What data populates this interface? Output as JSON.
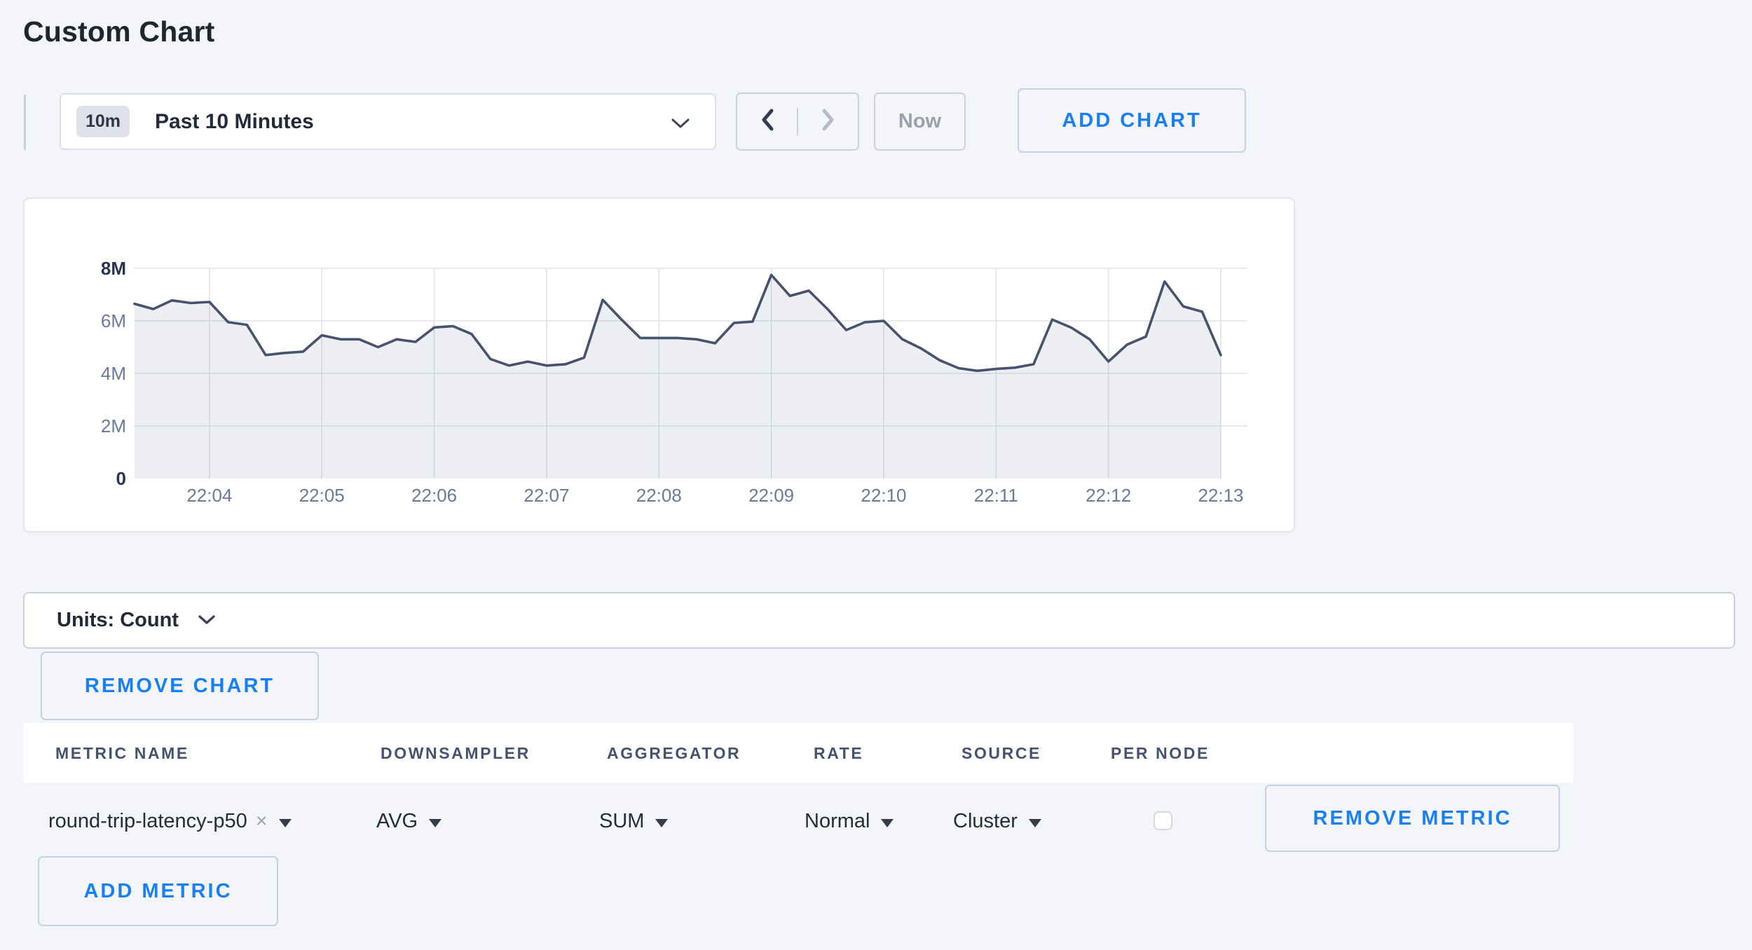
{
  "page": {
    "title": "Custom Chart",
    "background": "#f4f5f9",
    "accent_blue": "#1a80f2"
  },
  "icons": {
    "chevron_down": "⌄",
    "chevron_left": "‹",
    "chevron_right": "›",
    "caret_down": "▼",
    "close": "×"
  },
  "controls": {
    "time_window_badge": "10m",
    "time_window_label": "Past 10 Minutes",
    "now_label": "Now",
    "add_chart_label": "ADD CHART"
  },
  "chart_data": {
    "type": "area",
    "title": "",
    "xlabel": "",
    "ylabel": "",
    "x_start": "22:03:20",
    "x_interval_seconds": 10,
    "values_millions": [
      6.65,
      6.45,
      6.78,
      6.68,
      6.72,
      5.95,
      5.85,
      4.7,
      4.78,
      4.83,
      5.45,
      5.3,
      5.3,
      5.0,
      5.3,
      5.2,
      5.75,
      5.8,
      5.5,
      4.55,
      4.3,
      4.45,
      4.3,
      4.35,
      4.6,
      6.8,
      6.05,
      5.35,
      5.35,
      5.35,
      5.3,
      5.15,
      5.92,
      5.97,
      7.75,
      6.95,
      7.15,
      6.45,
      5.65,
      5.95,
      6.0,
      5.3,
      4.95,
      4.5,
      4.2,
      4.1,
      4.17,
      4.22,
      4.35,
      6.05,
      5.75,
      5.3,
      4.45,
      5.1,
      5.4,
      7.5,
      6.55,
      6.35,
      4.7
    ],
    "x_tick_labels": [
      "22:04",
      "22:05",
      "22:06",
      "22:07",
      "22:08",
      "22:09",
      "22:10",
      "22:11",
      "22:12",
      "22:13"
    ],
    "x_tick_indices": [
      4,
      10,
      16,
      22,
      28,
      34,
      40,
      46,
      52,
      58
    ],
    "y_tick_labels": [
      "0",
      "2M",
      "4M",
      "6M",
      "8M"
    ],
    "ylim_millions": [
      0,
      8
    ],
    "grid": true,
    "legend": "none",
    "line_color": "#47536e",
    "fill_color": "rgba(71,83,110,0.09)",
    "grid_color": "#dde3ee",
    "axis_label_color": "#6b7a99",
    "axis_label_bold_color": "#293450"
  },
  "units_bar": {
    "label": "Units: Count"
  },
  "chart_actions": {
    "remove_chart_label": "REMOVE CHART"
  },
  "metrics_table": {
    "columns": [
      "METRIC NAME",
      "DOWNSAMPLER",
      "AGGREGATOR",
      "RATE",
      "SOURCE",
      "PER NODE"
    ],
    "rows": [
      {
        "metric_name": "round-trip-latency-p50",
        "downsampler": "AVG",
        "aggregator": "SUM",
        "rate": "Normal",
        "source": "Cluster",
        "per_node_checked": false,
        "remove_label": "REMOVE METRIC"
      }
    ],
    "add_metric_label": "ADD METRIC"
  }
}
